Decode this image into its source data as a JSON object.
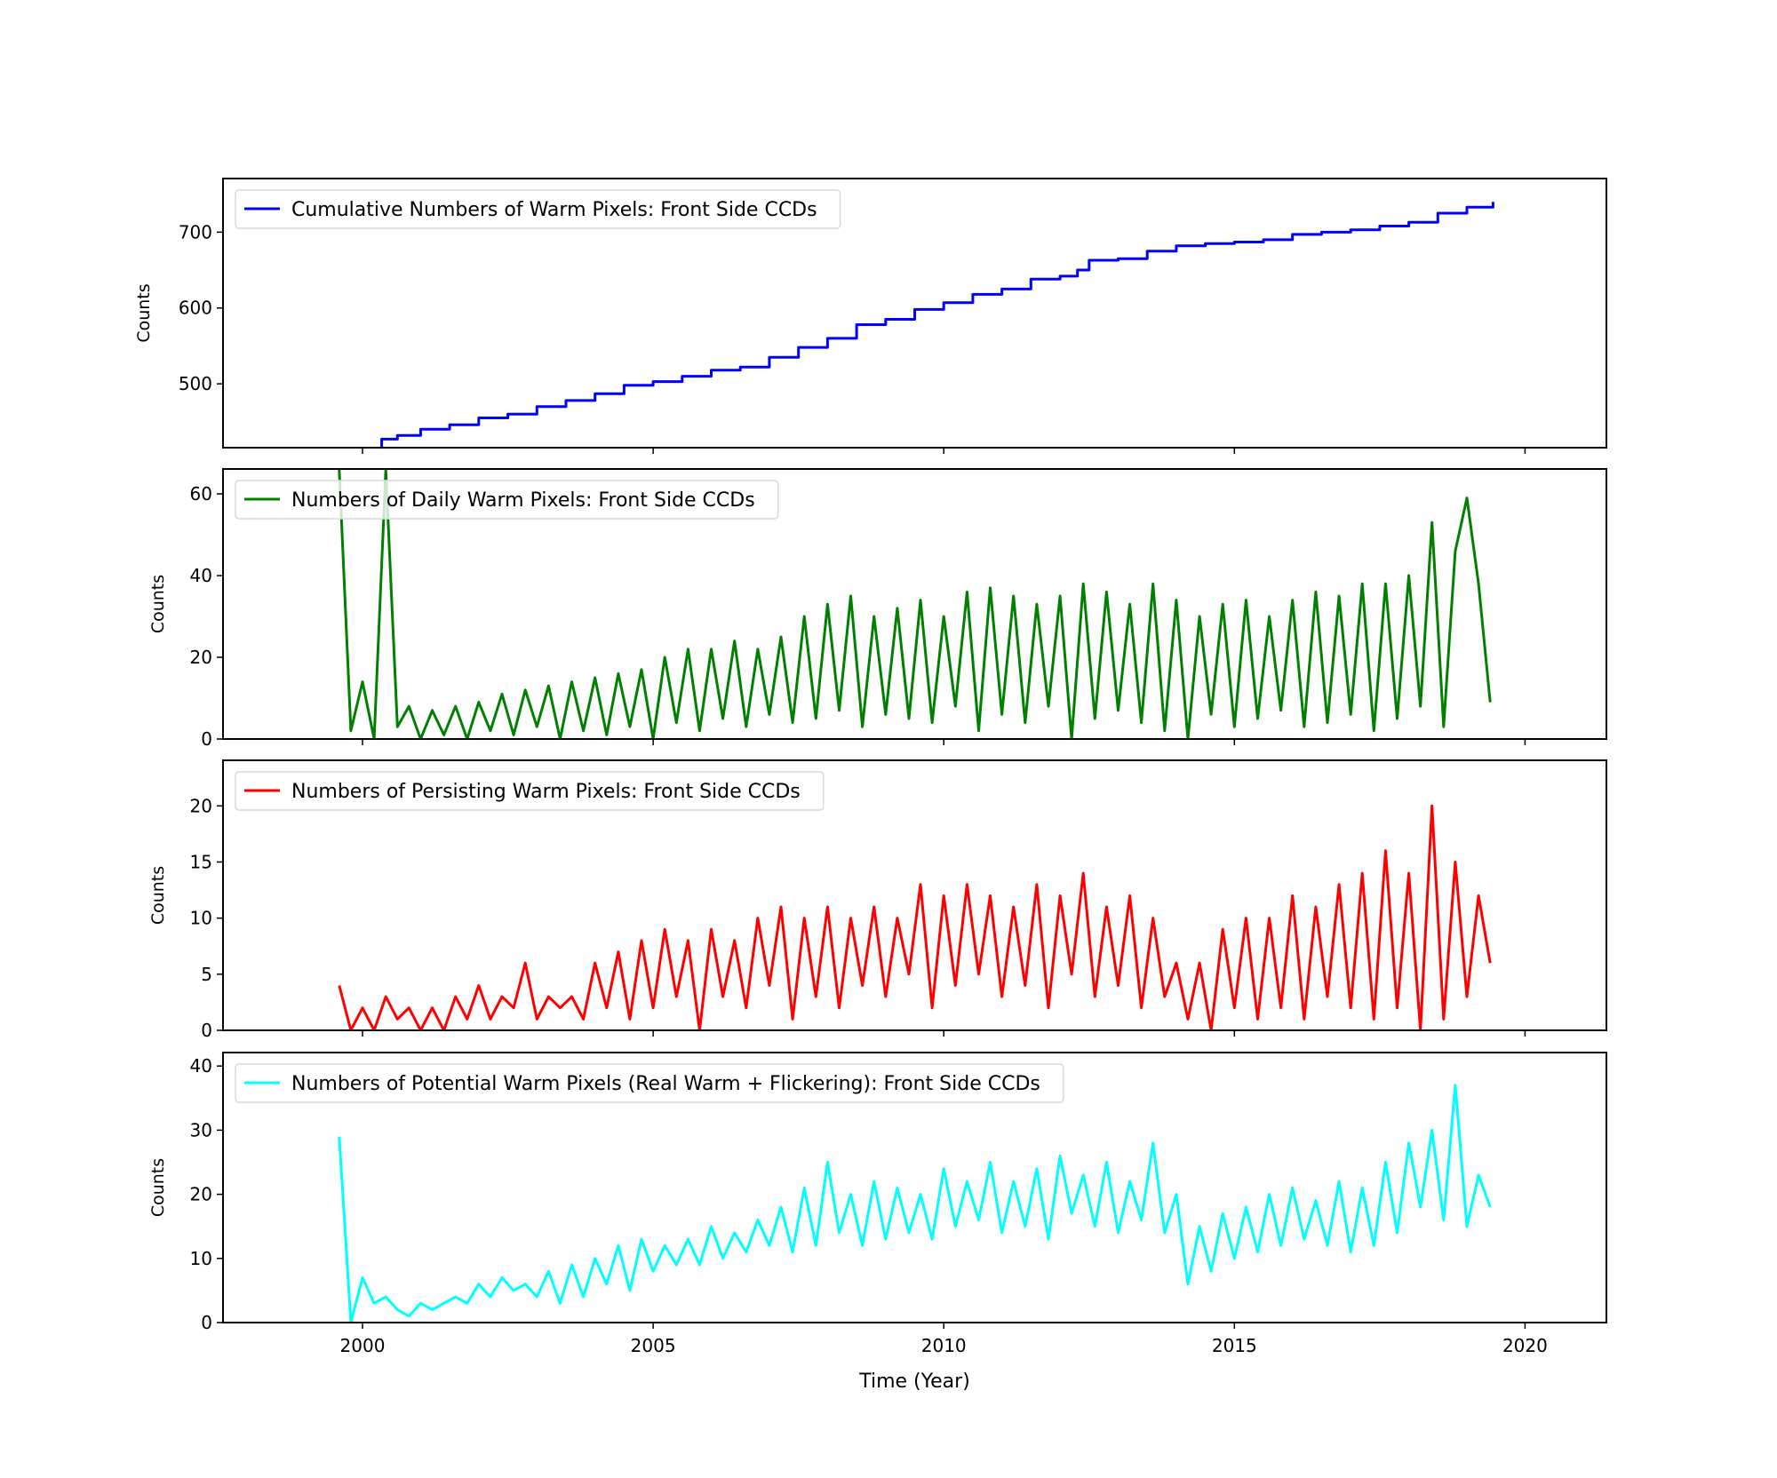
{
  "xlabel": "Time (Year)",
  "xlim": [
    1997.6,
    2021.4
  ],
  "xticks": [
    2000,
    2005,
    2010,
    2015,
    2020
  ],
  "chart_data": [
    {
      "type": "line",
      "step": true,
      "ylabel": "Counts",
      "ylim": [
        415.8,
        770.7
      ],
      "yticks": [
        500,
        600,
        700
      ],
      "legend": "top-left",
      "series": [
        {
          "name": "Cumulative Numbers of Warm Pixels: Front Side CCDs",
          "color": "#0000ff",
          "x": [
            2000.33,
            2000.6,
            2001,
            2001.5,
            2002,
            2002.5,
            2003,
            2003.5,
            2004,
            2004.5,
            2005,
            2005.5,
            2006,
            2006.5,
            2007,
            2007.5,
            2008,
            2008.5,
            2009,
            2009.5,
            2010,
            2010.5,
            2011,
            2011.5,
            2012,
            2012.3,
            2012.5,
            2013,
            2013.5,
            2014,
            2014.5,
            2015,
            2015.5,
            2016,
            2016.5,
            2017,
            2017.5,
            2018,
            2018.5,
            2019,
            2019.45
          ],
          "y": [
            427,
            432,
            440,
            446,
            455,
            460,
            470,
            478,
            487,
            498,
            503,
            510,
            518,
            522,
            535,
            548,
            560,
            578,
            585,
            598,
            607,
            618,
            625,
            638,
            642,
            650,
            663,
            665,
            675,
            682,
            685,
            687,
            690,
            697,
            700,
            703,
            708,
            713,
            725,
            733,
            740
          ]
        }
      ]
    },
    {
      "type": "line",
      "ylabel": "Counts",
      "ylim": [
        0,
        66.1
      ],
      "yticks": [
        0,
        20,
        40,
        60
      ],
      "legend": "top-left",
      "series": [
        {
          "name": "Numbers of Daily Warm Pixels: Front Side CCDs",
          "color": "#008000",
          "y": [
            66,
            2,
            14,
            0,
            66,
            3,
            8,
            0,
            7,
            1,
            8,
            0,
            9,
            2,
            11,
            1,
            12,
            3,
            13,
            0,
            14,
            2,
            15,
            1,
            16,
            3,
            17,
            0,
            20,
            4,
            22,
            2,
            22,
            5,
            24,
            3,
            22,
            6,
            25,
            4,
            30,
            5,
            33,
            7,
            35,
            3,
            30,
            6,
            32,
            5,
            34,
            4,
            30,
            8,
            36,
            2,
            37,
            6,
            35,
            4,
            33,
            8,
            35,
            0,
            38,
            5,
            36,
            7,
            33,
            4,
            38,
            2,
            34,
            0,
            30,
            6,
            33,
            3,
            34,
            5,
            30,
            7,
            34,
            3,
            36,
            4,
            35,
            6,
            38,
            2,
            38,
            5,
            40,
            8,
            53,
            3,
            46,
            59,
            38,
            9
          ]
        }
      ]
    },
    {
      "type": "line",
      "ylabel": "Counts",
      "ylim": [
        0,
        24.06
      ],
      "yticks": [
        0,
        5,
        10,
        15,
        20
      ],
      "legend": "top-left",
      "series": [
        {
          "name": "Numbers of Persisting Warm Pixels: Front Side CCDs",
          "color": "#ff0000",
          "y": [
            4,
            0,
            2,
            0,
            3,
            1,
            2,
            0,
            2,
            0,
            3,
            1,
            4,
            1,
            3,
            2,
            6,
            1,
            3,
            2,
            3,
            1,
            6,
            2,
            7,
            1,
            8,
            2,
            9,
            3,
            8,
            0,
            9,
            3,
            8,
            2,
            10,
            4,
            11,
            1,
            10,
            3,
            11,
            2,
            10,
            4,
            11,
            3,
            10,
            5,
            13,
            2,
            12,
            4,
            13,
            5,
            12,
            3,
            11,
            4,
            13,
            2,
            12,
            5,
            14,
            3,
            11,
            4,
            12,
            2,
            10,
            3,
            6,
            1,
            6,
            0,
            9,
            2,
            10,
            1,
            10,
            2,
            12,
            1,
            11,
            3,
            13,
            2,
            14,
            1,
            16,
            2,
            14,
            0,
            20,
            1,
            15,
            3,
            12,
            6
          ]
        }
      ]
    },
    {
      "type": "line",
      "ylabel": "Counts",
      "ylim": [
        0,
        42.1
      ],
      "yticks": [
        0,
        10,
        20,
        30,
        40
      ],
      "legend": "top-left",
      "series": [
        {
          "name": "Numbers of Potential Warm Pixels (Real Warm + Flickering): Front Side CCDs",
          "color": "#00ffff",
          "y": [
            29,
            0,
            7,
            3,
            4,
            2,
            1,
            3,
            2,
            3,
            4,
            3,
            6,
            4,
            7,
            5,
            6,
            4,
            8,
            3,
            9,
            4,
            10,
            6,
            12,
            5,
            13,
            8,
            12,
            9,
            13,
            9,
            15,
            10,
            14,
            11,
            16,
            12,
            18,
            11,
            21,
            12,
            25,
            14,
            20,
            12,
            22,
            13,
            21,
            14,
            20,
            13,
            24,
            15,
            22,
            16,
            25,
            14,
            22,
            15,
            24,
            13,
            26,
            17,
            23,
            15,
            25,
            14,
            22,
            16,
            28,
            14,
            20,
            6,
            15,
            8,
            17,
            10,
            18,
            11,
            20,
            12,
            21,
            13,
            19,
            12,
            22,
            11,
            21,
            12,
            25,
            14,
            28,
            18,
            30,
            16,
            37,
            15,
            23,
            18
          ]
        }
      ]
    }
  ],
  "sample_years": [
    1999.6,
    1999.8,
    2000.0,
    2000.2,
    2000.4,
    2000.6,
    2000.8,
    2001.0,
    2001.2,
    2001.4,
    2001.6,
    2001.8,
    2002.0,
    2002.2,
    2002.4,
    2002.6,
    2002.8,
    2003.0,
    2003.2,
    2003.4,
    2003.6,
    2003.8,
    2004.0,
    2004.2,
    2004.4,
    2004.6,
    2004.8,
    2005.0,
    2005.2,
    2005.4,
    2005.6,
    2005.8,
    2006.0,
    2006.2,
    2006.4,
    2006.6,
    2006.8,
    2007.0,
    2007.2,
    2007.4,
    2007.6,
    2007.8,
    2008.0,
    2008.2,
    2008.4,
    2008.6,
    2008.8,
    2009.0,
    2009.2,
    2009.4,
    2009.6,
    2009.8,
    2010.0,
    2010.2,
    2010.4,
    2010.6,
    2010.8,
    2011.0,
    2011.2,
    2011.4,
    2011.6,
    2011.8,
    2012.0,
    2012.2,
    2012.4,
    2012.6,
    2012.8,
    2013.0,
    2013.2,
    2013.4,
    2013.6,
    2013.8,
    2014.0,
    2014.2,
    2014.4,
    2014.6,
    2014.8,
    2015.0,
    2015.2,
    2015.4,
    2015.6,
    2015.8,
    2016.0,
    2016.2,
    2016.4,
    2016.6,
    2016.8,
    2017.0,
    2017.2,
    2017.4,
    2017.6,
    2017.8,
    2018.0,
    2018.2,
    2018.4,
    2018.6,
    2018.8,
    2019.0,
    2019.2,
    2019.4
  ]
}
